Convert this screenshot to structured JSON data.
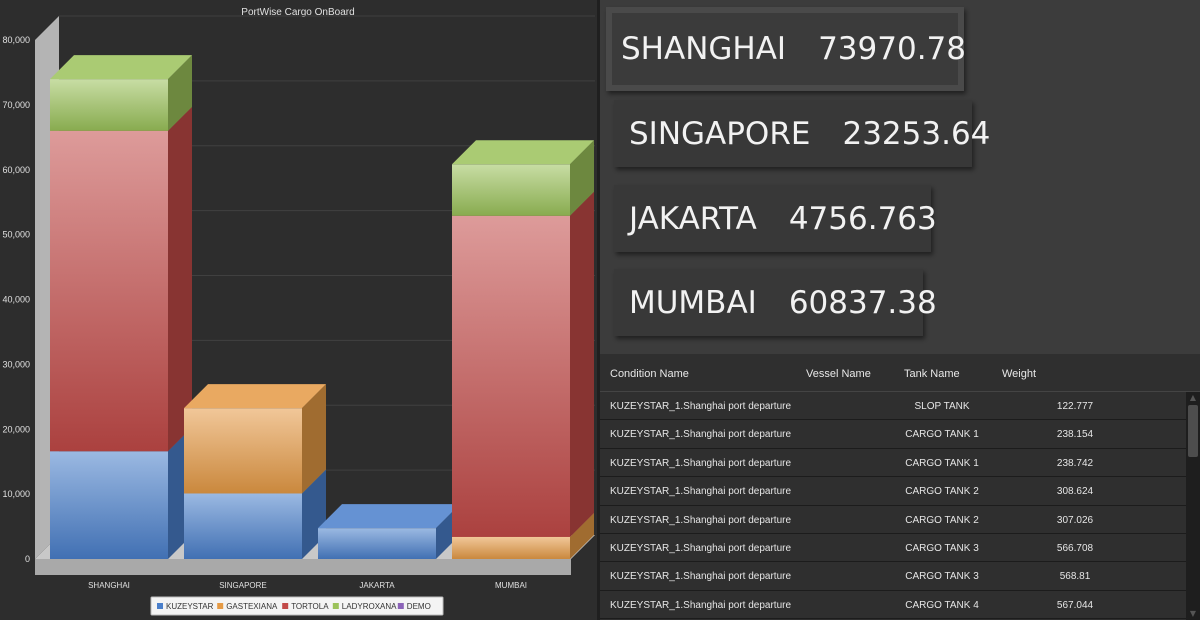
{
  "chart_data": {
    "type": "bar",
    "stacked": true,
    "three_d": true,
    "title": "PortWise Cargo OnBoard",
    "categories": [
      "SHANGHAI",
      "SINGAPORE",
      "JAKARTA",
      "MUMBAI"
    ],
    "series": [
      {
        "name": "KUZEYSTAR",
        "color": "#4a7fcb",
        "values": [
          16600,
          10100,
          4757,
          0
        ]
      },
      {
        "name": "GASTEXIANA",
        "color": "#e59a45",
        "values": [
          0,
          13150,
          0,
          3400
        ]
      },
      {
        "name": "TORTOLA",
        "color": "#c24a48",
        "values": [
          49400,
          0,
          0,
          49500
        ]
      },
      {
        "name": "LADYROXANA",
        "color": "#9bc25a",
        "values": [
          7970,
          0,
          0,
          7940
        ]
      },
      {
        "name": "DEMO",
        "color": "#8b63b8",
        "values": [
          0,
          0,
          0,
          0
        ]
      }
    ],
    "ylim": [
      0,
      80000
    ],
    "yticks": [
      "0",
      "10,000",
      "20,000",
      "30,000",
      "40,000",
      "50,000",
      "60,000",
      "70,000",
      "80,000"
    ],
    "xlabel": "",
    "ylabel": "",
    "grid": true,
    "legend_position": "bottom"
  },
  "tiles": [
    {
      "port": "SHANGHAI",
      "value": "73970.78"
    },
    {
      "port": "SINGAPORE",
      "value": "23253.64"
    },
    {
      "port": "JAKARTA",
      "value": "4756.763"
    },
    {
      "port": "MUMBAI",
      "value": "60837.38"
    }
  ],
  "table": {
    "headers": {
      "condition": "Condition Name",
      "vessel": "Vessel Name",
      "tank": "Tank Name",
      "weight": "Weight"
    },
    "rows": [
      {
        "condition": "KUZEYSTAR_1.Shanghai port departure",
        "vessel": "",
        "tank": "SLOP TANK",
        "weight": "122.777"
      },
      {
        "condition": "KUZEYSTAR_1.Shanghai port departure",
        "vessel": "",
        "tank": "CARGO TANK 1",
        "weight": "238.154"
      },
      {
        "condition": "KUZEYSTAR_1.Shanghai port departure",
        "vessel": "",
        "tank": "CARGO TANK 1",
        "weight": "238.742"
      },
      {
        "condition": "KUZEYSTAR_1.Shanghai port departure",
        "vessel": "",
        "tank": "CARGO TANK 2",
        "weight": "308.624"
      },
      {
        "condition": "KUZEYSTAR_1.Shanghai port departure",
        "vessel": "",
        "tank": "CARGO TANK 2",
        "weight": "307.026"
      },
      {
        "condition": "KUZEYSTAR_1.Shanghai port departure",
        "vessel": "",
        "tank": "CARGO TANK 3",
        "weight": "566.708"
      },
      {
        "condition": "KUZEYSTAR_1.Shanghai port departure",
        "vessel": "",
        "tank": "CARGO TANK 3",
        "weight": "568.81"
      },
      {
        "condition": "KUZEYSTAR_1.Shanghai port departure",
        "vessel": "",
        "tank": "CARGO TANK 4",
        "weight": "567.044"
      }
    ]
  },
  "scrollbar": {
    "up_icon": "arrow-up-icon",
    "down_icon": "arrow-down-icon"
  }
}
